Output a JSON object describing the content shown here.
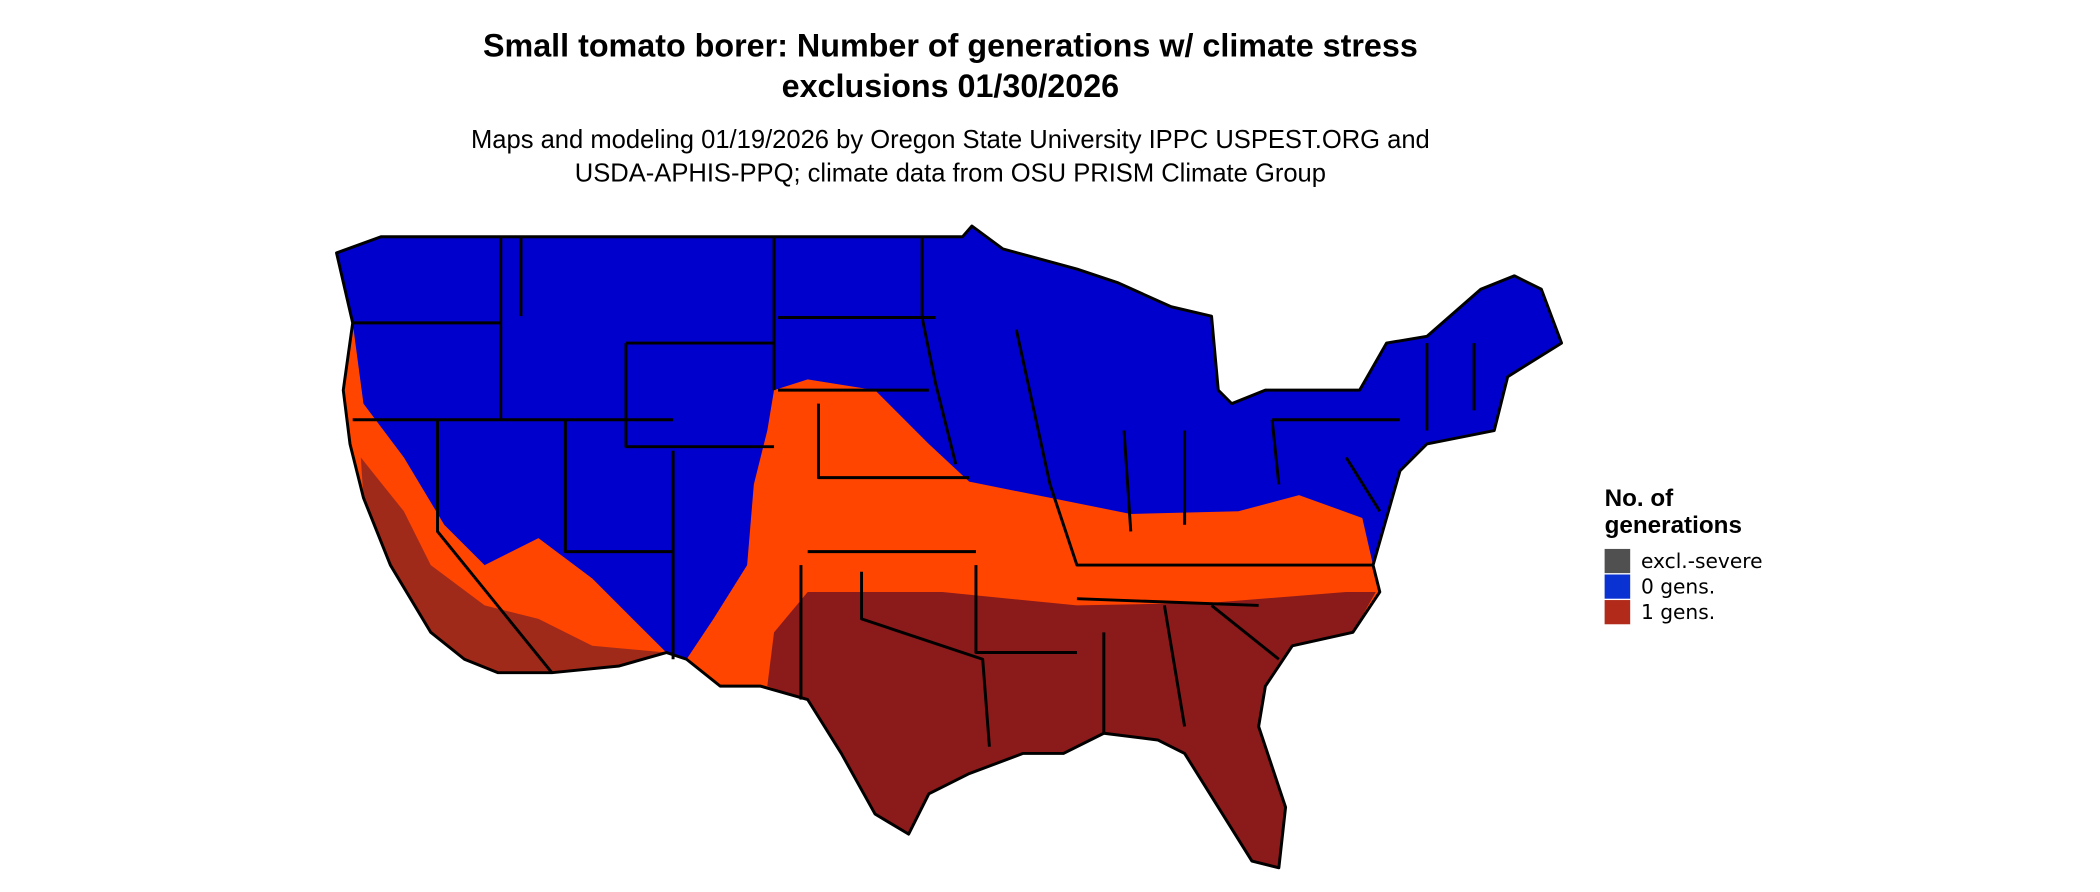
{
  "header": {
    "title": [
      "Small tomato borer: Number of generations w/ climate stress",
      "exclusions 01/30/2026"
    ],
    "subtitle": [
      "Maps and modeling 01/19/2026 by Oregon State University IPPC USPEST.ORG and",
      "USDA-APHIS-PPQ; climate data from OSU PRISM Climate Group"
    ]
  },
  "legend": {
    "title": [
      "No. of",
      "generations"
    ],
    "items": [
      {
        "label": "excl.-severe",
        "color": "#505050"
      },
      {
        "label": "0 gens.",
        "color": "#0a32d2"
      },
      {
        "label": "1 gens.",
        "color": "#b22a1a"
      }
    ]
  }
}
